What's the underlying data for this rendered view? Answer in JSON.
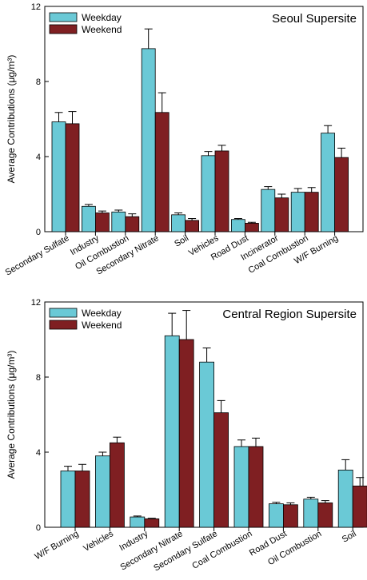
{
  "colors": {
    "weekday": "#6ac9d6",
    "weekend": "#7f1f22"
  },
  "chart_data": [
    {
      "type": "bar",
      "title": "Seoul Supersite",
      "ylabel": "Average Contributions (μg/m³)",
      "xlabel": "",
      "ylim": [
        0,
        12
      ],
      "yticks": [
        0,
        4,
        8,
        12
      ],
      "legend": "top-left",
      "categories": [
        "Secondary Sulfate",
        "Industry",
        "Oil Combustion",
        "Secondary Nitrate",
        "Soil",
        "Vehicles",
        "Road Dust",
        "Incinerator",
        "Coal Combustion",
        "W/F Burning"
      ],
      "series": [
        {
          "name": "Weekday",
          "values": [
            5.85,
            1.35,
            1.05,
            9.75,
            0.9,
            4.05,
            0.65,
            2.25,
            2.1,
            5.25
          ],
          "errors": [
            0.5,
            0.1,
            0.1,
            1.05,
            0.1,
            0.22,
            0.05,
            0.15,
            0.2,
            0.4
          ]
        },
        {
          "name": "Weekend",
          "values": [
            5.75,
            1.0,
            0.8,
            6.35,
            0.6,
            4.3,
            0.45,
            1.8,
            2.1,
            3.95
          ],
          "errors": [
            0.65,
            0.1,
            0.15,
            1.05,
            0.1,
            0.3,
            0.05,
            0.2,
            0.25,
            0.5
          ]
        }
      ]
    },
    {
      "type": "bar",
      "title": "Central Region Supersite",
      "ylabel": "Average Contributions (μg/m³)",
      "xlabel": "",
      "ylim": [
        0,
        12
      ],
      "yticks": [
        0,
        4,
        8,
        12
      ],
      "legend": "top-left",
      "categories": [
        "W/F Burning",
        "Vehicles",
        "Industry",
        "Secondary Nitrate",
        "Secondary Sulfate",
        "Coal Combustion",
        "Road Dust",
        "Oil Combustion",
        "Soil"
      ],
      "series": [
        {
          "name": "Weekday",
          "values": [
            3.0,
            3.8,
            0.55,
            10.2,
            8.8,
            4.3,
            1.25,
            1.5,
            3.05
          ],
          "errors": [
            0.25,
            0.2,
            0.05,
            1.2,
            0.75,
            0.35,
            0.08,
            0.1,
            0.55
          ]
        },
        {
          "name": "Weekend",
          "values": [
            3.0,
            4.5,
            0.45,
            10.0,
            6.1,
            4.3,
            1.2,
            1.3,
            2.2
          ],
          "errors": [
            0.35,
            0.3,
            0.03,
            1.55,
            0.65,
            0.45,
            0.1,
            0.12,
            0.45
          ]
        }
      ]
    }
  ]
}
